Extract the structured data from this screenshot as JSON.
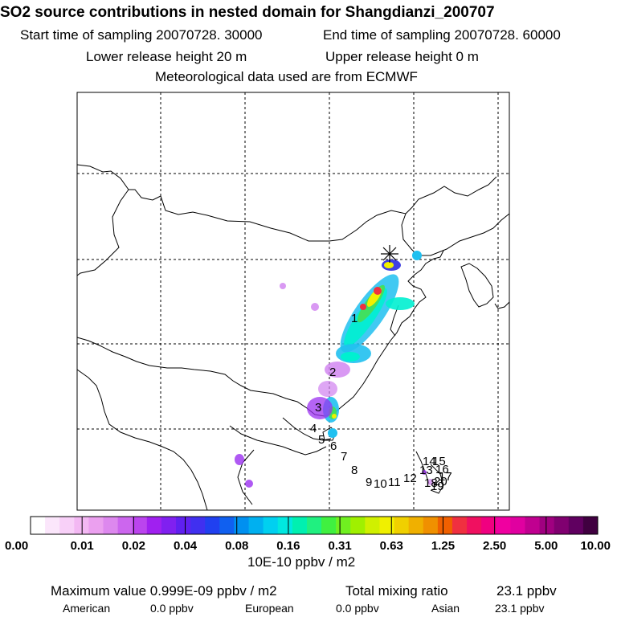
{
  "header": {
    "title": "SO2 source contributions in nested domain for Shangdianzi_200707",
    "start_time": "Start time of sampling 20070728. 30000",
    "end_time": "End time of sampling 20070728. 60000",
    "lower_release": "Lower release height   20 m",
    "upper_release": "Upper release height    0 m",
    "met_data": "Meteorological data used are from ECMWF"
  },
  "map": {
    "trajectory_labels": [
      "1",
      "2",
      "3",
      "4",
      "5",
      "6",
      "7",
      "8",
      "9",
      "10",
      "11",
      "12",
      "13",
      "14",
      "15",
      "16",
      "17",
      "18",
      "19",
      "20"
    ],
    "station_marker": "station-star",
    "plume_colors": [
      "#f5b8f5",
      "#d080f0",
      "#9b30f0",
      "#4040e0",
      "#20c0f0",
      "#00f0d0",
      "#40e060",
      "#f0f000",
      "#f0a000",
      "#f03040"
    ]
  },
  "colorbar": {
    "colors": [
      "#ffffff",
      "#fbe6fb",
      "#f8d0f8",
      "#f3b8f3",
      "#eba0ef",
      "#dd88ee",
      "#cc66ee",
      "#bb44ee",
      "#a020f0",
      "#8020f0",
      "#6020f0",
      "#4030f0",
      "#2040f0",
      "#1060f0",
      "#0090f0",
      "#00b0f0",
      "#00d0f0",
      "#00e8e0",
      "#00f0b0",
      "#20f080",
      "#40f040",
      "#70f020",
      "#a0f000",
      "#d0f000",
      "#f0f000",
      "#f0d000",
      "#f0b000",
      "#f09000",
      "#f06000",
      "#f03040",
      "#f01060",
      "#f00080",
      "#f000a0",
      "#e000a0",
      "#c00090",
      "#a00080",
      "#800070",
      "#600060",
      "#400040"
    ],
    "tick_labels": [
      "0.00",
      "0.01",
      "0.02",
      "0.04",
      "0.08",
      "0.16",
      "0.31",
      "0.63",
      "1.25",
      "2.50",
      "5.00",
      "10.00"
    ],
    "unit_label": "10E-10 ppbv / m2"
  },
  "footer": {
    "max_label": "Maximum value  0.999E-09 ppbv / m2",
    "total_label": "Total mixing ratio",
    "total_value": "23.1 ppbv",
    "american_label": "American",
    "american_value": "0.0 ppbv",
    "european_label": "European",
    "european_value": "0.0 ppbv",
    "asian_label": "Asian",
    "asian_value": "23.1 ppbv"
  }
}
